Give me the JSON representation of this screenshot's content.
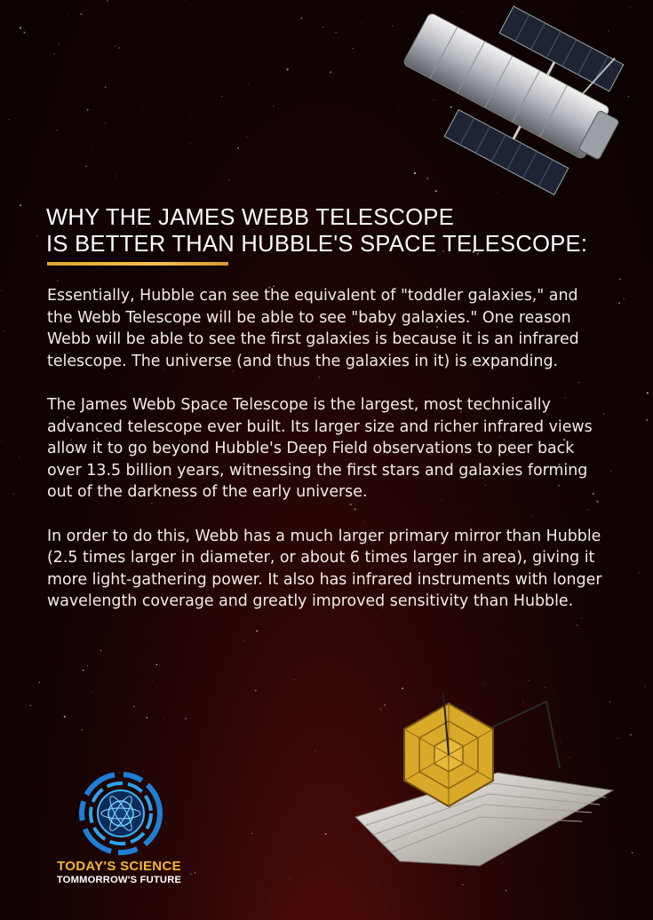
{
  "title": {
    "line1": "WHY THE JAMES WEBB TELESCOPE",
    "line2": "IS BETTER THAN HUBBLE'S SPACE TELESCOPE:"
  },
  "paragraphs": [
    "Essentially, Hubble can see the equivalent of \"toddler galaxies,\" and the Webb Telescope will be able to see \"baby galaxies.\" One reason Webb will be able to see the first galaxies is because it is an infrared telescope. The universe (and thus the galaxies in it) is expanding.",
    "The James Webb Space Telescope is the largest, most technically advanced telescope ever built. Its larger size and richer infrared views allow it to go beyond Hubble's Deep Field observations to peer back over 13.5 billion years, witnessing the first stars and galaxies forming out of the darkness of the early universe.",
    "In order to do this, Webb has a much larger primary mirror than Hubble (2.5 times larger in diameter, or about 6 times larger in area), giving it more light-gathering power. It also has infrared instruments with longer wavelength coverage and greatly improved sensitivity than Hubble."
  ],
  "logo": {
    "line1": "TODAY'S SCIENCE",
    "line2": "TOMMORROW'S FUTURE"
  },
  "colors": {
    "background": "#120303",
    "accent": "#f2b632",
    "text": "#f1ece6"
  },
  "images": {
    "top_right": "hubble-telescope",
    "bottom_right": "james-webb-telescope",
    "bottom_left": "science-club-logo"
  }
}
